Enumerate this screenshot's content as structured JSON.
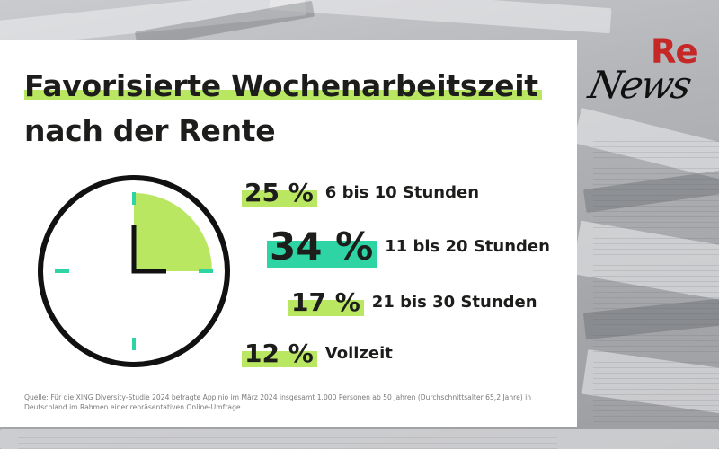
{
  "logo": {
    "re": "Re",
    "news": "News"
  },
  "title": {
    "line1": "Favorisierte Wochenarbeitszeit",
    "line2": "nach der Rente"
  },
  "chart_data": {
    "type": "bar",
    "title": "Favorisierte Wochenarbeitszeit nach der Rente",
    "categories": [
      "6 bis 10 Stunden",
      "11 bis 20 Stunden",
      "21 bis 30 Stunden",
      "Vollzeit"
    ],
    "values": [
      25,
      34,
      17,
      12
    ],
    "value_labels": [
      "25 %",
      "34 %",
      "17 %",
      "12 %"
    ],
    "unit": "%",
    "highlight_category": "11 bis 20 Stunden",
    "colors": {
      "accent": "#b9e761",
      "highlight": "#2ed4a4",
      "text": "#1d1d1b"
    },
    "clock_sector_percent": 25
  },
  "source": "Quelle: Für die XING Diversity-Studie 2024 befragte Appinio im März 2024 insgesamt 1.000 Personen ab 50 Jahren (Durchschnittsalter 65,2 Jahre) in Deutschland im Rahmen einer repräsentativen Online-Umfrage."
}
